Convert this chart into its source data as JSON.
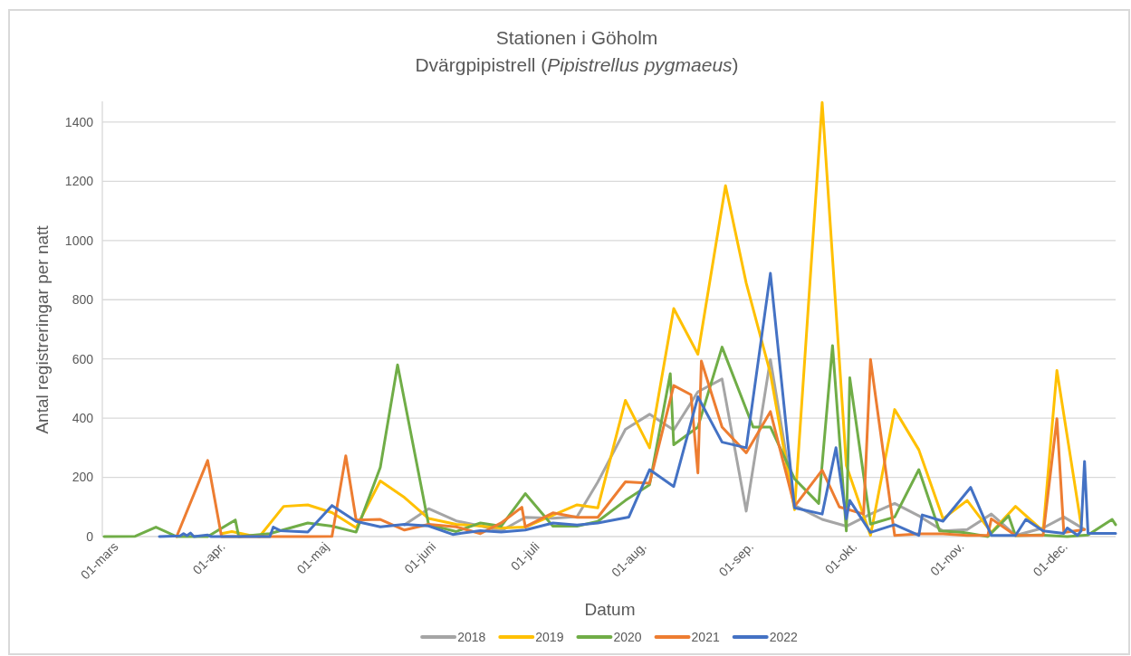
{
  "chart_data": {
    "type": "line",
    "title": "Stationen i Göholm",
    "subtitle": "Dvärgpipistrell (Pipistrellus pygmaeus)",
    "xlabel": "Datum",
    "ylabel": "Antal registreringar per natt",
    "xlim": [
      "--02-26",
      "--12-16"
    ],
    "xticks": [
      {
        "value": "--03-01",
        "label": "01-mars"
      },
      {
        "value": "--04-01",
        "label": "01-apr."
      },
      {
        "value": "--05-01",
        "label": "01-maj"
      },
      {
        "value": "--06-01",
        "label": "01-juni"
      },
      {
        "value": "--07-01",
        "label": "01-juli"
      },
      {
        "value": "--08-01",
        "label": "01-aug."
      },
      {
        "value": "--09-01",
        "label": "01-sep."
      },
      {
        "value": "--10-01",
        "label": "01-okt."
      },
      {
        "value": "--11-01",
        "label": "01-nov."
      },
      {
        "value": "--12-01",
        "label": "01-dec."
      }
    ],
    "ylim": [
      0,
      1470
    ],
    "yticks": [
      0,
      200,
      400,
      600,
      800,
      1000,
      1200,
      1400
    ],
    "grid": "y",
    "legend": "bottom",
    "series": [
      {
        "name": "2018",
        "color": "#a5a5a5",
        "x": [
          "--05-24",
          "--05-31",
          "--06-08",
          "--06-15",
          "--06-21",
          "--06-28",
          "--07-06",
          "--07-13",
          "--07-19",
          "--07-27",
          "--08-03",
          "--08-10",
          "--08-17",
          "--08-24",
          "--08-31",
          "--09-07",
          "--09-14",
          "--09-22",
          "--09-29",
          "--10-06",
          "--10-13",
          "--10-20",
          "--10-27",
          "--11-03",
          "--11-10",
          "--11-17",
          "--11-25",
          "--12-01",
          "--12-07"
        ],
        "values": [
          40,
          94,
          53,
          36,
          19,
          65,
          62,
          67,
          184,
          362,
          413,
          360,
          489,
          532,
          86,
          598,
          105,
          58,
          35,
          76,
          112,
          70,
          19,
          24,
          76,
          4,
          29,
          66,
          24
        ]
      },
      {
        "name": "2019",
        "color": "#ffc000",
        "x": [
          "--04-01",
          "--04-04",
          "--04-09",
          "--04-12",
          "--04-19",
          "--04-26",
          "--05-03",
          "--05-10",
          "--05-17",
          "--05-24",
          "--05-31",
          "--06-08",
          "--06-15",
          "--06-21",
          "--06-28",
          "--07-06",
          "--07-13",
          "--07-19",
          "--07-27",
          "--08-03",
          "--08-10",
          "--08-17",
          "--08-25",
          "--08-31",
          "--09-07",
          "--09-14",
          "--09-22",
          "--09-29",
          "--10-06",
          "--10-13",
          "--10-20",
          "--10-27",
          "--11-03",
          "--11-10",
          "--11-17",
          "--11-25",
          "--11-29",
          "--12-06"
        ],
        "values": [
          10,
          17,
          5,
          0,
          102,
          107,
          81,
          30,
          188,
          132,
          61,
          41,
          36,
          29,
          32,
          72,
          107,
          97,
          460,
          300,
          770,
          616,
          1185,
          856,
          551,
          91,
          1466,
          240,
          4,
          429,
          293,
          60,
          122,
          14,
          102,
          19,
          561,
          40
        ]
      },
      {
        "name": "2020",
        "color": "#70ad47",
        "x": [
          "--02-26",
          "--03-07",
          "--03-13",
          "--03-19",
          "--03-28",
          "--04-05",
          "--04-06",
          "--04-15",
          "--04-26",
          "--05-03",
          "--05-10",
          "--05-17",
          "--05-22",
          "--05-31",
          "--06-08",
          "--06-15",
          "--06-21",
          "--06-28",
          "--07-06",
          "--07-13",
          "--07-19",
          "--07-27",
          "--08-03",
          "--08-09",
          "--08-10",
          "--08-17",
          "--08-24",
          "--09-02",
          "--09-07",
          "--09-14",
          "--09-21",
          "--09-25",
          "--09-29",
          "--09-30",
          "--10-06",
          "--10-13",
          "--10-20",
          "--10-26",
          "--11-02",
          "--11-09",
          "--11-15",
          "--11-17",
          "--11-24",
          "--12-02",
          "--12-08",
          "--12-15",
          "--12-16"
        ],
        "values": [
          0,
          1,
          32,
          0,
          0,
          56,
          0,
          10,
          46,
          35,
          15,
          234,
          580,
          40,
          17,
          46,
          35,
          145,
          35,
          35,
          51,
          122,
          175,
          550,
          310,
          370,
          640,
          370,
          370,
          195,
          112,
          645,
          19,
          536,
          42,
          66,
          226,
          19,
          14,
          0,
          70,
          3,
          5,
          0,
          5,
          58,
          40
        ]
      },
      {
        "name": "2021",
        "color": "#ed7d31",
        "x": [
          "--03-19",
          "--03-28",
          "--04-01",
          "--04-15",
          "--04-26",
          "--05-03",
          "--05-07",
          "--05-10",
          "--05-17",
          "--05-24",
          "--05-31",
          "--06-08",
          "--06-15",
          "--06-21",
          "--06-27",
          "--06-28",
          "--07-06",
          "--07-13",
          "--07-19",
          "--07-27",
          "--08-03",
          "--08-10",
          "--08-15",
          "--08-17",
          "--08-18",
          "--08-24",
          "--08-31",
          "--09-07",
          "--09-14",
          "--09-22",
          "--09-27",
          "--10-04",
          "--10-06",
          "--10-13",
          "--10-20",
          "--10-27",
          "--11-03",
          "--11-09",
          "--11-10",
          "--11-17",
          "--11-25",
          "--11-29",
          "--12-01",
          "--12-07"
        ],
        "values": [
          0,
          257,
          0,
          0,
          0,
          1,
          273,
          56,
          58,
          22,
          41,
          33,
          10,
          46,
          99,
          33,
          80,
          65,
          65,
          185,
          180,
          510,
          479,
          215,
          593,
          370,
          283,
          422,
          102,
          224,
          100,
          76,
          598,
          4,
          9,
          9,
          4,
          4,
          60,
          4,
          4,
          398,
          14,
          24
        ]
      },
      {
        "name": "2022",
        "color": "#4472c4",
        "x": [
          "--03-14",
          "--03-20",
          "--03-21",
          "--03-22",
          "--03-23",
          "--03-24",
          "--03-28",
          "--03-29",
          "--04-15",
          "--04-16",
          "--04-18",
          "--04-26",
          "--05-03",
          "--05-10",
          "--05-17",
          "--05-24",
          "--05-31",
          "--06-07",
          "--06-15",
          "--06-21",
          "--06-28",
          "--07-06",
          "--07-13",
          "--07-19",
          "--07-28",
          "--08-03",
          "--08-10",
          "--08-17",
          "--08-24",
          "--08-31",
          "--09-07",
          "--09-14",
          "--09-22",
          "--09-26",
          "--09-29",
          "--09-30",
          "--10-06",
          "--10-13",
          "--10-20",
          "--10-21",
          "--10-27",
          "--11-04",
          "--11-10",
          "--11-17",
          "--11-20",
          "--11-25",
          "--12-01",
          "--12-02",
          "--12-05",
          "--12-06",
          "--12-07",
          "--12-08",
          "--12-16"
        ],
        "values": [
          0,
          2,
          10,
          3,
          12,
          0,
          5,
          0,
          0,
          32,
          20,
          15,
          105,
          51,
          33,
          41,
          36,
          7,
          20,
          15,
          22,
          46,
          39,
          46,
          66,
          226,
          169,
          472,
          319,
          300,
          889,
          97,
          76,
          300,
          60,
          122,
          14,
          40,
          4,
          73,
          52,
          166,
          4,
          4,
          58,
          19,
          11,
          29,
          4,
          19,
          254,
          11,
          11
        ]
      }
    ]
  }
}
